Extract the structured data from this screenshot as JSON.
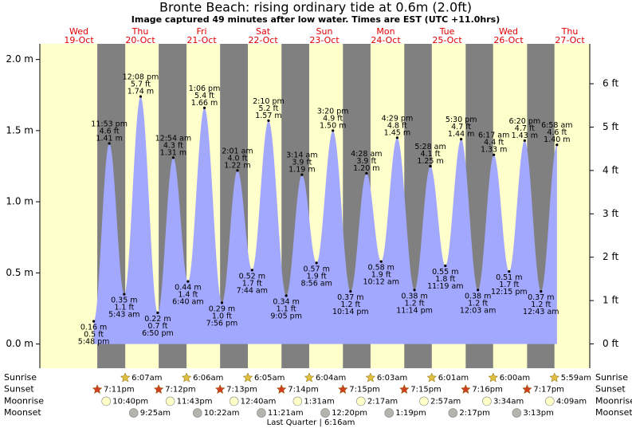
{
  "chart_data": {
    "type": "tide",
    "title": "Bronte Beach: rising  ordinary tide at 0.6m (2.0ft)",
    "subtitle": "Image captured 49 minutes after low water. Times are EST (UTC +11.0hrs)",
    "days": [
      {
        "name": "Wed",
        "date": "19-Oct"
      },
      {
        "name": "Thu",
        "date": "20-Oct"
      },
      {
        "name": "Fri",
        "date": "21-Oct"
      },
      {
        "name": "Sat",
        "date": "22-Oct"
      },
      {
        "name": "Sun",
        "date": "23-Oct"
      },
      {
        "name": "Mon",
        "date": "24-Oct"
      },
      {
        "name": "Tue",
        "date": "25-Oct"
      },
      {
        "name": "Wed",
        "date": "26-Oct"
      },
      {
        "name": "Thu",
        "date": "27-Oct"
      }
    ],
    "ylim": [
      -0.17,
      2.11
    ],
    "yticks": [
      {
        "value": 0,
        "label": "0.0 m"
      },
      {
        "value": 0.5,
        "label": "0.5 m"
      },
      {
        "value": 1,
        "label": "1.0 m"
      },
      {
        "value": 1.5,
        "label": "1.5 m"
      },
      {
        "value": 2,
        "label": "2.0 m"
      }
    ],
    "y2lim": [
      -0.56,
      6.92
    ],
    "y2ticks": [
      {
        "value": 0,
        "label": "0 ft"
      },
      {
        "value": 1,
        "label": "1 ft"
      },
      {
        "value": 2,
        "label": "2 ft"
      },
      {
        "value": 3,
        "label": "3 ft"
      },
      {
        "value": 4,
        "label": "4 ft"
      },
      {
        "value": 5,
        "label": "5 ft"
      },
      {
        "value": 6,
        "label": "6 ft"
      }
    ],
    "extremes": {
      "times": [
        "5:48 pm",
        "11:53 pm",
        "5:43 am",
        "12:08 pm",
        "6:50 pm",
        "12:54 am",
        "6:40 am",
        "1:06 pm",
        "7:56 pm",
        "2:01 am",
        "7:44 am",
        "2:10 pm",
        "9:05 pm",
        "3:14 am",
        "8:56 am",
        "3:20 pm",
        "10:14 pm",
        "4:28 am",
        "10:12 am",
        "4:29 pm",
        "11:14 pm",
        "5:28 am",
        "11:19 am",
        "5:30 pm",
        "12:03 am",
        "6:17 am",
        "12:15 pm",
        "6:20 pm",
        "12:43 am",
        "6:58 am"
      ],
      "values": [
        0.16,
        1.41,
        0.35,
        1.74,
        0.22,
        1.31,
        0.44,
        1.66,
        0.29,
        1.22,
        0.52,
        1.57,
        0.34,
        1.19,
        0.57,
        1.5,
        0.37,
        1.2,
        0.58,
        1.45,
        0.38,
        1.25,
        0.55,
        1.44,
        0.38,
        1.33,
        0.51,
        1.43,
        0.37,
        1.4
      ],
      "value_labels": [
        "0.16 m",
        "1.41 m",
        "0.35 m",
        "1.74 m",
        "0.22 m",
        "1.31 m",
        "0.44 m",
        "1.66 m",
        "0.29 m",
        "1.22 m",
        "0.52 m",
        "1.57 m",
        "0.34 m",
        "1.19 m",
        "0.57 m",
        "1.50 m",
        "0.37 m",
        "1.20 m",
        "0.58 m",
        "1.45 m",
        "0.38 m",
        "1.25 m",
        "0.55 m",
        "1.44 m",
        "0.38 m",
        "1.33 m",
        "0.51 m",
        "1.43 m",
        "0.37 m",
        "1.40 m"
      ],
      "ft_labels": [
        "0.5 ft",
        "4.6 ft",
        "1.1 ft",
        "5.7 ft",
        "0.7 ft",
        "4.3 ft",
        "1.4 ft",
        "5.4 ft",
        "1.0 ft",
        "4.0 ft",
        "1.7 ft",
        "5.2 ft",
        "1.1 ft",
        "3.9 ft",
        "1.9 ft",
        "4.9 ft",
        "1.2 ft",
        "3.9 ft",
        "1.9 ft",
        "4.8 ft",
        "1.2 ft",
        "4.1 ft",
        "1.8 ft",
        "4.7 ft",
        "1.2 ft",
        "4.4 ft",
        "1.7 ft",
        "4.7 ft",
        "1.2 ft",
        "4.6 ft"
      ]
    },
    "rows": [
      {
        "name": "Sunrise",
        "times": [
          null,
          "6:07am",
          "6:06am",
          "6:05am",
          "6:04am",
          "6:03am",
          "6:01am",
          "6:00am",
          "5:59am"
        ]
      },
      {
        "name": "Sunset",
        "times": [
          "7:11pm",
          "7:12pm",
          "7:13pm",
          "7:14pm",
          "7:15pm",
          "7:15pm",
          "7:16pm",
          "7:17pm",
          null
        ]
      },
      {
        "name": "Moonrise",
        "times": [
          "10:40pm",
          "11:43pm",
          null,
          "12:40am",
          "1:31am",
          "2:17am",
          "2:57am",
          "3:34am",
          "4:09am"
        ]
      },
      {
        "name": "Moonset",
        "times": [
          null,
          "9:25am",
          "10:22am",
          "11:21am",
          "12:20pm",
          "1:19pm",
          "2:17pm",
          "3:13pm",
          null
        ]
      }
    ],
    "moon_phase": "Last Quarter | 6:16am",
    "colors": {
      "day": "#ffffcc",
      "night": "#808080",
      "water": "#a3a8ff",
      "header": "#e00000",
      "sunrise": "#e0c040",
      "sunset": "#d04020",
      "moonrise": "#ffffc8",
      "moonset": "#b4b4ac"
    }
  }
}
